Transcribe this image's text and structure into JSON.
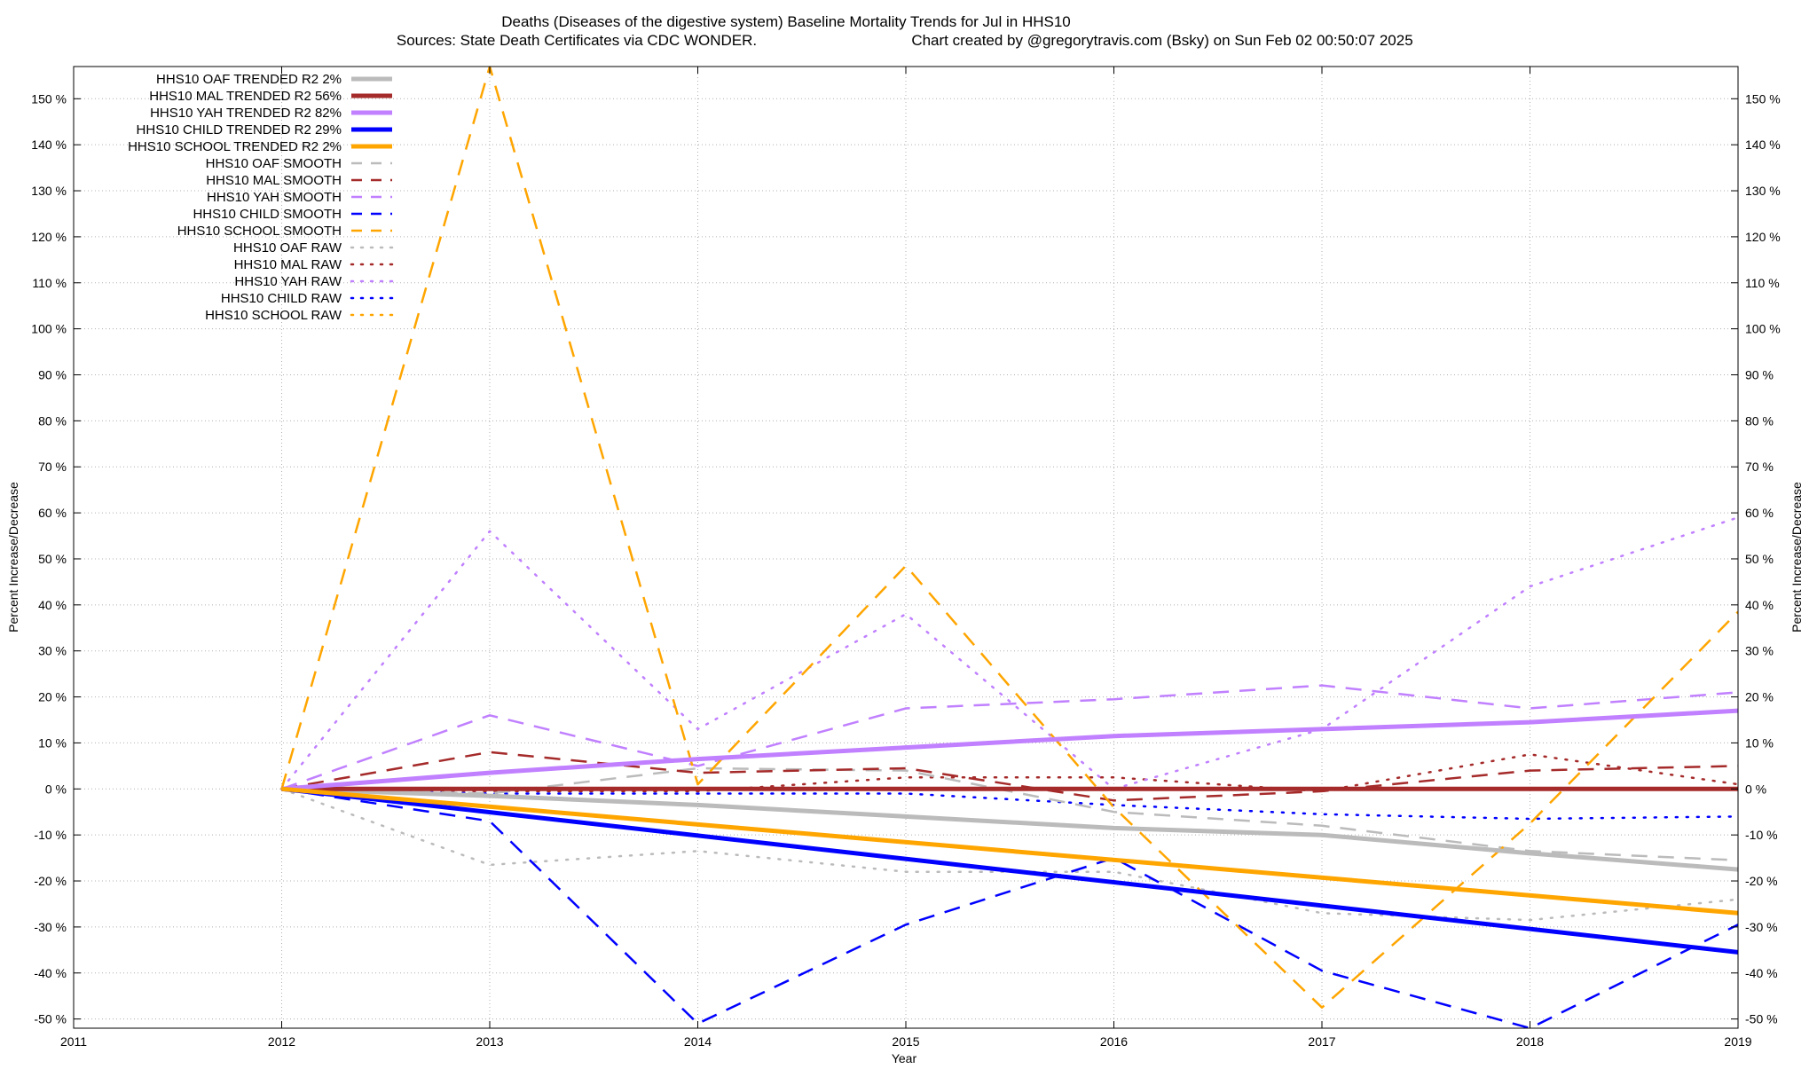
{
  "chart_data": {
    "type": "line",
    "title": "Deaths (Diseases of the digestive system)  Baseline Mortality Trends for Jul in HHS10",
    "subtitle_left": "Sources: State Death Certificates via CDC WONDER.",
    "subtitle_right": "Chart created by @gregorytravis.com (Bsky) on Sun Feb 02 00:50:07 2025",
    "xlabel": "Year",
    "ylabel_left": "Percent Increase/Decrease",
    "ylabel_right": "Percent Increase/Decrease",
    "xlim": [
      2011,
      2019
    ],
    "ylim": [
      -52,
      157
    ],
    "x_ticks": [
      2011,
      2012,
      2013,
      2014,
      2015,
      2016,
      2017,
      2018,
      2019
    ],
    "x_tick_labels": [
      "2011",
      "2012",
      "2013",
      "2014",
      "2015",
      "2016",
      "2017",
      "2018",
      "2019"
    ],
    "y_ticks": [
      -50,
      -40,
      -30,
      -20,
      -10,
      0,
      10,
      20,
      30,
      40,
      50,
      60,
      70,
      80,
      90,
      100,
      110,
      120,
      130,
      140,
      150
    ],
    "y_tick_labels": [
      "-50 %",
      "-40 %",
      "-30 %",
      "-20 %",
      "-10 %",
      "0 %",
      "10 %",
      "20 %",
      "30 %",
      "40 %",
      "50 %",
      "60 %",
      "70 %",
      "80 %",
      "90 %",
      "100 %",
      "110 %",
      "120 %",
      "130 %",
      "140 %",
      "150 %"
    ],
    "legend_position": "top-left",
    "series": [
      {
        "name": "HHS10 OAF TRENDED R2  2%",
        "style": "solid",
        "color": "#bbbbbb",
        "x": [
          2012,
          2013,
          2014,
          2015,
          2016,
          2017,
          2018,
          2019
        ],
        "values": [
          0,
          -1.5,
          -3.5,
          -6,
          -8.5,
          -10,
          -14,
          -17.5
        ]
      },
      {
        "name": "HHS10 MAL TRENDED R2  56%",
        "style": "solid",
        "color": "#a52a2a",
        "x": [
          2012,
          2019
        ],
        "values": [
          0,
          0
        ]
      },
      {
        "name": "HHS10 YAH TRENDED R2  82%",
        "style": "solid",
        "color": "#c080ff",
        "x": [
          2012,
          2013,
          2014,
          2015,
          2016,
          2017,
          2018,
          2019
        ],
        "values": [
          0,
          3.5,
          6.5,
          9,
          11.5,
          13,
          14.5,
          17
        ]
      },
      {
        "name": "HHS10 CHILD TRENDED R2  29%",
        "style": "solid",
        "color": "#0000ff",
        "x": [
          2012,
          2019
        ],
        "values": [
          0,
          -35.5
        ]
      },
      {
        "name": "HHS10 SCHOOL TRENDED R2  2%",
        "style": "solid",
        "color": "#ffa500",
        "x": [
          2012,
          2019
        ],
        "values": [
          0,
          -27
        ]
      },
      {
        "name": "HHS10 OAF SMOOTH",
        "style": "dashed",
        "color": "#bbbbbb",
        "x": [
          2012,
          2013,
          2014,
          2015,
          2016,
          2017,
          2018,
          2019
        ],
        "values": [
          0,
          -1,
          4.5,
          4,
          -5,
          -8,
          -13.5,
          -15.5
        ]
      },
      {
        "name": "HHS10 MAL SMOOTH",
        "style": "dashed",
        "color": "#a52a2a",
        "x": [
          2012,
          2013,
          2014,
          2015,
          2016,
          2017,
          2018,
          2019
        ],
        "values": [
          0,
          8,
          3.5,
          4.5,
          -2.5,
          -0.5,
          4,
          5
        ]
      },
      {
        "name": "HHS10 YAH SMOOTH",
        "style": "dashed",
        "color": "#c080ff",
        "x": [
          2012,
          2013,
          2014,
          2015,
          2016,
          2017,
          2018,
          2019
        ],
        "values": [
          0,
          16,
          5,
          17.5,
          19.5,
          22.5,
          17.5,
          21
        ]
      },
      {
        "name": "HHS10 CHILD SMOOTH",
        "style": "dashed",
        "color": "#0000ff",
        "x": [
          2012,
          2013,
          2014,
          2015,
          2016,
          2017,
          2018,
          2019
        ],
        "values": [
          0,
          -7,
          -51,
          -29.5,
          -15,
          -39.5,
          -52,
          -29.5
        ]
      },
      {
        "name": "HHS10 SCHOOL SMOOTH",
        "style": "dashed",
        "color": "#ffa500",
        "x": [
          2012,
          2013,
          2014,
          2015,
          2016,
          2017,
          2018,
          2019
        ],
        "values": [
          0,
          157,
          1,
          48.5,
          -4,
          -47.5,
          -7.5,
          38.5
        ]
      },
      {
        "name": "HHS10 OAF RAW",
        "style": "dotted",
        "color": "#bbbbbb",
        "x": [
          2012,
          2013,
          2014,
          2015,
          2016,
          2017,
          2018,
          2019
        ],
        "values": [
          0,
          -16.5,
          -13.5,
          -18,
          -18,
          -27,
          -28.5,
          -24
        ]
      },
      {
        "name": "HHS10 MAL RAW",
        "style": "dotted",
        "color": "#a52a2a",
        "x": [
          2012,
          2013,
          2014,
          2015,
          2016,
          2017,
          2018,
          2019
        ],
        "values": [
          0,
          -0.5,
          -0.5,
          2.5,
          2.5,
          -0.5,
          7.5,
          1
        ]
      },
      {
        "name": "HHS10 YAH RAW",
        "style": "dotted",
        "color": "#c080ff",
        "x": [
          2012,
          2013,
          2014,
          2015,
          2016,
          2017,
          2018,
          2019
        ],
        "values": [
          0,
          56,
          13,
          38,
          0,
          13,
          44,
          59
        ]
      },
      {
        "name": "HHS10 CHILD RAW",
        "style": "dotted",
        "color": "#0000ff",
        "x": [
          2012,
          2013,
          2014,
          2015,
          2016,
          2017,
          2018,
          2019
        ],
        "values": [
          0,
          -1,
          -1,
          -1,
          -3.5,
          -5.5,
          -6.5,
          -6
        ]
      },
      {
        "name": "HHS10 SCHOOL RAW",
        "style": "dotted",
        "color": "#ffa500",
        "x": [
          2012,
          2013,
          2014,
          2015,
          2016,
          2017,
          2018,
          2019
        ],
        "values": [
          0,
          0,
          0,
          0,
          0,
          0,
          0,
          0
        ]
      }
    ]
  }
}
